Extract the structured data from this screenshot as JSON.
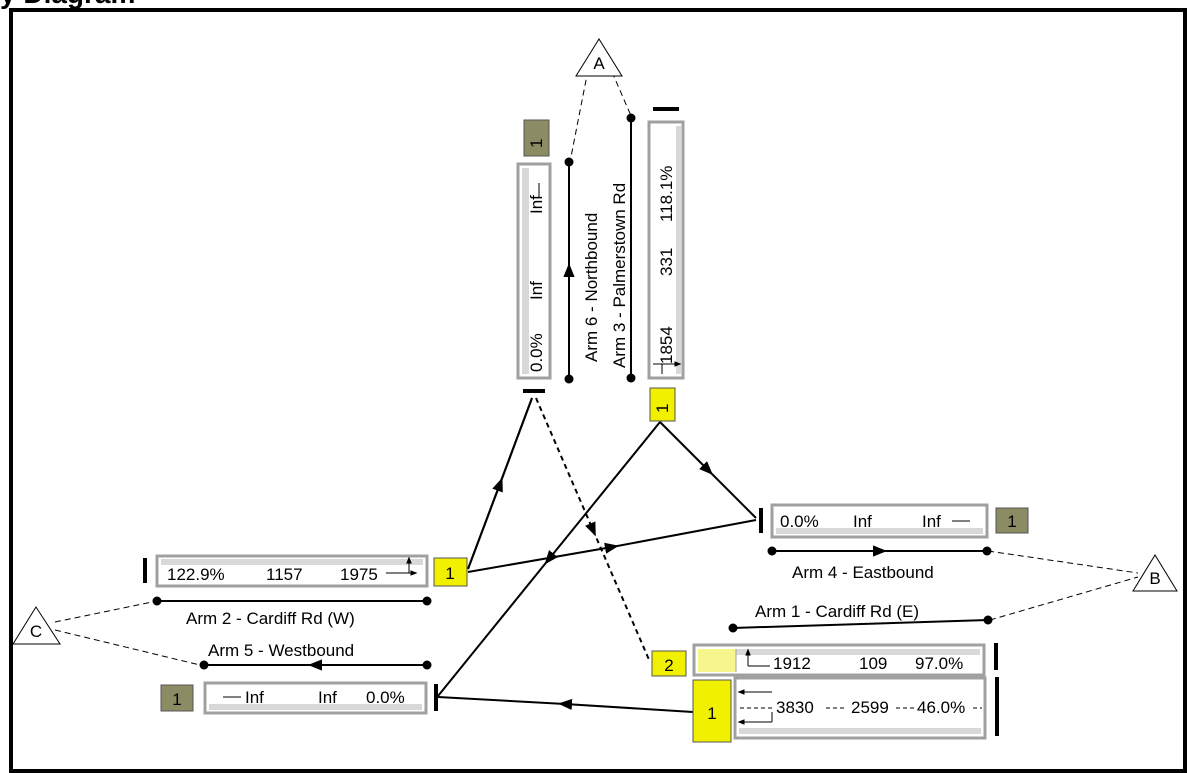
{
  "title": "y    Diagram",
  "nodes": [
    {
      "key": "A",
      "label": "A"
    },
    {
      "key": "B",
      "label": "B"
    },
    {
      "key": "C",
      "label": "C"
    }
  ],
  "arms": {
    "arm1": "Arm 1 - Cardiff Rd (E)",
    "arm2": "Arm 2 - Cardiff Rd (W)",
    "arm3": "Arm 3 - Palmerstown Rd",
    "arm4": "Arm 4 - Eastbound",
    "arm5": "Arm 5 - Westbound",
    "arm6": "Arm 6 - Northbound"
  },
  "lanes": {
    "arm6_lane": {
      "dos": "0.0%",
      "cap": "Inf",
      "queue": "Inf"
    },
    "arm3_lane": {
      "sat": "1854",
      "flow": "331",
      "dos": "118.1%"
    },
    "arm4_lane": {
      "dos": "0.0%",
      "cap": "Inf",
      "queue": "Inf"
    },
    "arm2_lane": {
      "dos": "122.9%",
      "flow": "1157",
      "sat": "1975"
    },
    "arm5_lane": {
      "queue": "Inf",
      "cap": "Inf",
      "dos": "0.0%"
    },
    "arm1_lane1": {
      "sat": "1912",
      "flow": "109",
      "dos": "97.0%"
    },
    "arm1_lane2": {
      "sat": "3830",
      "flow": "2599",
      "dos": "46.0%"
    }
  },
  "stage_tags": {
    "arm6": "1",
    "arm3": "1",
    "arm4": "1",
    "arm2": "1",
    "arm5": "1",
    "arm1_top": "2",
    "arm1_bottom": "1"
  },
  "colors": {
    "signal_tag": "#f0f000",
    "give_way_tag": "#8c8c64",
    "lane_border": "#a0a0a0",
    "lane_fill": "#d8d8d8",
    "highlight_cell": "#f6f68c"
  }
}
